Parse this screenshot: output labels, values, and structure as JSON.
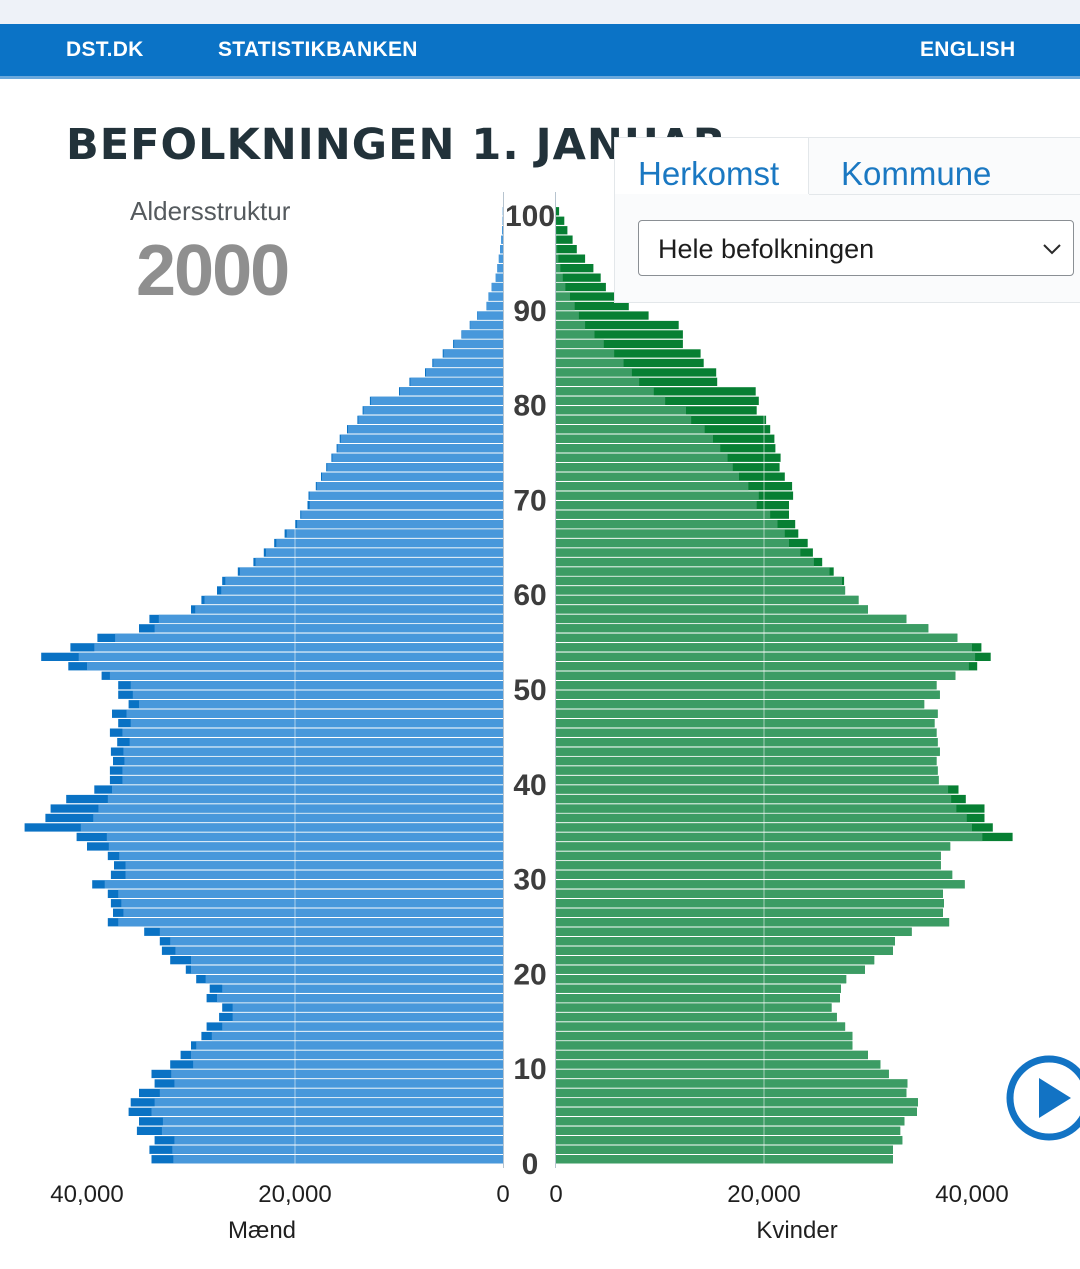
{
  "nav": {
    "links": [
      "DST.DK",
      "STATISTIKBANKEN"
    ],
    "language": "ENGLISH"
  },
  "page": {
    "title": "BEFOLKNINGEN 1. JANUAR",
    "subtitle": "Aldersstruktur",
    "year": "2000"
  },
  "tabs": {
    "items": [
      "Herkomst",
      "Kommune"
    ],
    "active": "Herkomst"
  },
  "filter": {
    "selected": "Hele befolkningen"
  },
  "colors": {
    "nav": "#0b73c6",
    "men_light": "#4898db",
    "men_dark": "#0a72c4",
    "women_light": "#3c9c64",
    "women_dark": "#077f33",
    "play": "#1273c4"
  },
  "icons": {
    "dropdown": "chevron-down-icon",
    "play": "play-icon"
  },
  "chart_data": {
    "type": "bar",
    "orientation": "horizontal",
    "chart_subtype": "population-pyramid",
    "categories_label": "age",
    "age_ticks": [
      "0",
      "10",
      "20",
      "30",
      "40",
      "50",
      "60",
      "70",
      "80",
      "90",
      "100"
    ],
    "x_ticks_left": [
      "40,000",
      "20,000",
      "0"
    ],
    "x_ticks_right": [
      "0",
      "20,000",
      "40,000"
    ],
    "xlim": [
      0,
      44000
    ],
    "grid_x": [
      20000
    ],
    "series": [
      {
        "name": "Mænd",
        "ages": [
          0,
          1,
          2,
          3,
          4,
          5,
          6,
          7,
          8,
          9,
          10,
          11,
          12,
          13,
          14,
          15,
          16,
          17,
          18,
          19,
          20,
          21,
          22,
          23,
          24,
          25,
          26,
          27,
          28,
          29,
          30,
          31,
          32,
          33,
          34,
          35,
          36,
          37,
          38,
          39,
          40,
          41,
          42,
          43,
          44,
          45,
          46,
          47,
          48,
          49,
          50,
          51,
          52,
          53,
          54,
          55,
          56,
          57,
          58,
          59,
          60,
          61,
          62,
          63,
          64,
          65,
          66,
          67,
          68,
          69,
          70,
          71,
          72,
          73,
          74,
          75,
          76,
          77,
          78,
          79,
          80,
          81,
          82,
          83,
          84,
          85,
          86,
          87,
          88,
          89,
          90,
          91,
          92,
          93,
          94,
          95,
          96,
          97,
          98,
          99,
          100
        ],
        "values": [
          33800,
          34000,
          33500,
          35200,
          35000,
          36000,
          35800,
          35000,
          33500,
          33800,
          32000,
          31000,
          30000,
          29000,
          28500,
          27300,
          27000,
          28500,
          28200,
          29500,
          30500,
          32000,
          32800,
          33000,
          34500,
          38000,
          37500,
          37700,
          38000,
          39500,
          37700,
          37400,
          38000,
          40000,
          41000,
          46000,
          44000,
          43500,
          42000,
          39300,
          37800,
          37800,
          37500,
          37700,
          37100,
          37800,
          37000,
          37600,
          36000,
          37000,
          37000,
          38600,
          41800,
          44400,
          41600,
          39000,
          35000,
          34000,
          30000,
          29000,
          27500,
          27000,
          25500,
          24000,
          23000,
          22000,
          21000,
          20000,
          19500,
          18800,
          18700,
          18000,
          17500,
          17000,
          16500,
          16000,
          15700,
          15000,
          14000,
          13500,
          12800,
          10000,
          9000,
          7500,
          6800,
          5800,
          4800,
          4000,
          3200,
          2500,
          1600,
          1400,
          1100,
          700,
          550,
          400,
          280,
          170,
          90,
          40,
          15
        ],
        "light_values": [
          31700,
          31800,
          31600,
          32800,
          32700,
          33800,
          33500,
          33000,
          31600,
          31900,
          29800,
          30000,
          29500,
          28000,
          27000,
          26000,
          26000,
          27500,
          27000,
          28600,
          30000,
          30000,
          31500,
          32000,
          33000,
          37000,
          36500,
          36700,
          37000,
          38300,
          36300,
          36300,
          36900,
          37900,
          38100,
          40600,
          39400,
          38900,
          38000,
          37600,
          36600,
          36600,
          36400,
          36500,
          35900,
          36600,
          35800,
          36200,
          35000,
          35600,
          35800,
          37800,
          40000,
          40800,
          39300,
          37300,
          33500,
          33100,
          29600,
          28700,
          27100,
          26700,
          25300,
          23800,
          22800,
          21800,
          20800,
          19800,
          19400,
          18600,
          18600,
          17900,
          17400,
          16900,
          16400,
          15900,
          15600,
          14900,
          13900,
          13400,
          12700,
          9900,
          8900,
          7400,
          6700,
          5700,
          4700,
          3950,
          3150,
          2480,
          1590,
          1390,
          1090,
          695,
          545,
          395,
          278,
          168,
          88,
          40,
          15
        ],
        "color_light": "#4898db",
        "color_dark": "#0a72c4"
      },
      {
        "name": "Kvinder",
        "ages": [
          0,
          1,
          2,
          3,
          4,
          5,
          6,
          7,
          8,
          9,
          10,
          11,
          12,
          13,
          14,
          15,
          16,
          17,
          18,
          19,
          20,
          21,
          22,
          23,
          24,
          25,
          26,
          27,
          28,
          29,
          30,
          31,
          32,
          33,
          34,
          35,
          36,
          37,
          38,
          39,
          40,
          41,
          42,
          43,
          44,
          45,
          46,
          47,
          48,
          49,
          50,
          51,
          52,
          53,
          54,
          55,
          56,
          57,
          58,
          59,
          60,
          61,
          62,
          63,
          64,
          65,
          66,
          67,
          68,
          69,
          70,
          71,
          72,
          73,
          74,
          75,
          76,
          77,
          78,
          79,
          80,
          81,
          82,
          83,
          84,
          85,
          86,
          87,
          88,
          89,
          90,
          91,
          92,
          93,
          94,
          95,
          96,
          97,
          98,
          99,
          100
        ],
        "values": [
          32400,
          32400,
          33300,
          33100,
          33500,
          34700,
          34800,
          33700,
          33800,
          32000,
          31200,
          30000,
          28500,
          28500,
          27800,
          27000,
          26500,
          27300,
          27400,
          27900,
          29700,
          30600,
          32400,
          32600,
          34200,
          37800,
          37200,
          37300,
          37200,
          39300,
          38100,
          37000,
          37000,
          37900,
          43900,
          42000,
          41200,
          41200,
          39400,
          38700,
          36800,
          36700,
          36600,
          36900,
          36700,
          36600,
          36400,
          36700,
          35400,
          36900,
          36600,
          38400,
          40500,
          41800,
          40900,
          38600,
          35800,
          33700,
          30000,
          29100,
          27800,
          27700,
          26700,
          25600,
          24700,
          24200,
          23300,
          23000,
          22400,
          22400,
          22800,
          22700,
          22000,
          21500,
          21600,
          21100,
          21000,
          20600,
          20200,
          19300,
          19500,
          19200,
          15500,
          15400,
          14200,
          13900,
          12200,
          12200,
          11800,
          8900,
          7000,
          6000,
          4800,
          4300,
          3600,
          2800,
          2000,
          1600,
          1100,
          800,
          300
        ],
        "light_values": [
          32400,
          32400,
          33300,
          33100,
          33500,
          34700,
          34800,
          33700,
          33800,
          32000,
          31200,
          30000,
          28500,
          28500,
          27800,
          27000,
          26500,
          27300,
          27400,
          27900,
          29700,
          30600,
          32400,
          32600,
          34200,
          37800,
          37200,
          37300,
          37200,
          39300,
          38100,
          37000,
          37000,
          37900,
          41000,
          40000,
          39500,
          38500,
          38000,
          37700,
          36800,
          36700,
          36600,
          36900,
          36700,
          36600,
          36400,
          36700,
          35400,
          36900,
          36600,
          38400,
          39700,
          40300,
          40000,
          38600,
          35800,
          33700,
          30000,
          29100,
          27800,
          27500,
          26300,
          24800,
          23500,
          22400,
          22000,
          21300,
          20600,
          19300,
          19500,
          18500,
          17600,
          17000,
          16500,
          15800,
          15100,
          14300,
          13000,
          12500,
          10500,
          9400,
          8000,
          7300,
          6500,
          5600,
          4600,
          3700,
          2800,
          2200,
          1800,
          1350,
          900,
          650,
          420,
          230,
          120,
          60,
          25,
          10,
          3
        ],
        "color_light": "#3c9c64",
        "color_dark": "#077f33"
      }
    ],
    "xlabel_left": "Mænd",
    "xlabel_right": "Kvinder"
  }
}
